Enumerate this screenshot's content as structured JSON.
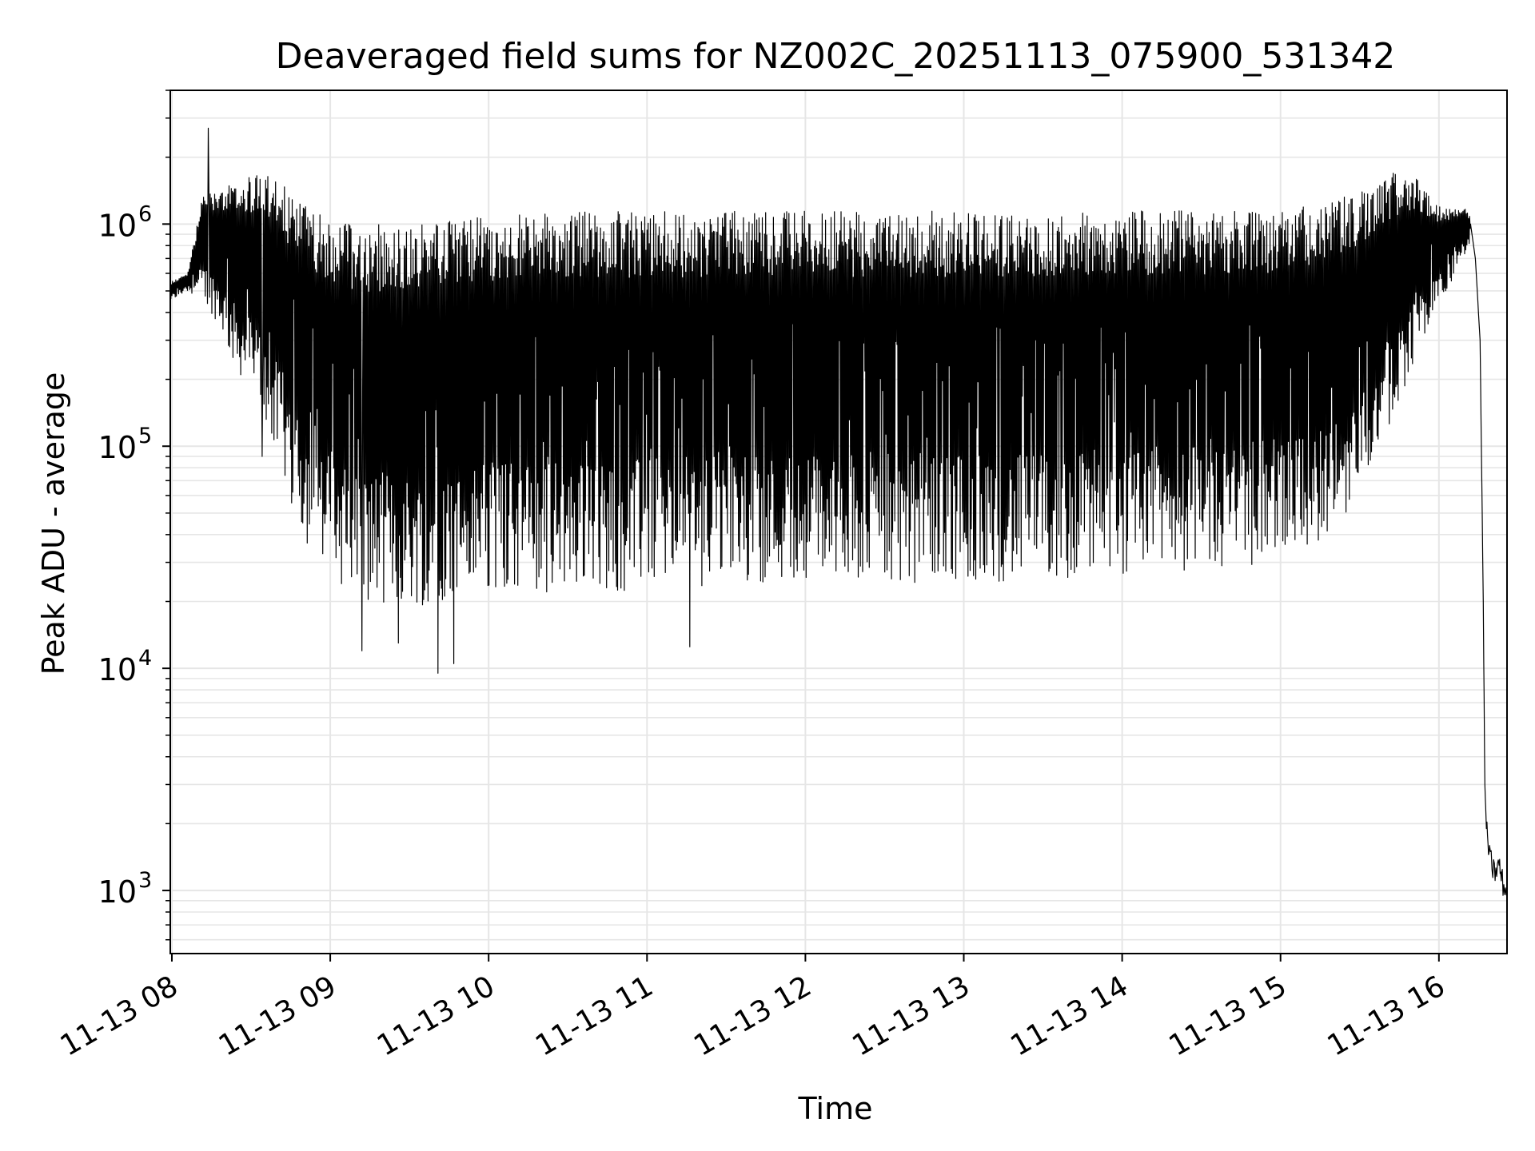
{
  "chart_data": {
    "type": "line",
    "title": "Deaveraged field sums for NZ002C_20251113_075900_531342",
    "xlabel": "Time",
    "ylabel": "Peak ADU - average",
    "yscale": "log",
    "xlim_hours": [
      7.99,
      16.43
    ],
    "ylim": [
      520,
      4000000
    ],
    "grid": true,
    "x_ticks": [
      {
        "h": 8,
        "label": "11-13 08"
      },
      {
        "h": 9,
        "label": "11-13 09"
      },
      {
        "h": 10,
        "label": "11-13 10"
      },
      {
        "h": 11,
        "label": "11-13 11"
      },
      {
        "h": 12,
        "label": "11-13 12"
      },
      {
        "h": 13,
        "label": "11-13 13"
      },
      {
        "h": 14,
        "label": "11-13 14"
      },
      {
        "h": 15,
        "label": "11-13 15"
      },
      {
        "h": 16,
        "label": "11-13 16"
      }
    ],
    "y_ticks": [
      {
        "v": 1000,
        "base": "10",
        "exp": "3"
      },
      {
        "v": 10000,
        "base": "10",
        "exp": "4"
      },
      {
        "v": 100000,
        "base": "10",
        "exp": "5"
      },
      {
        "v": 1000000,
        "base": "10",
        "exp": "6"
      }
    ],
    "series": [
      {
        "name": "Peak ADU - average",
        "color": "#000000",
        "style": "oscillating",
        "description": "rapid oscillation between an upper envelope (peaks) and lower envelope (troughs); values given at time knots in hours",
        "upper_envelope": {
          "h": [
            7.99,
            8.1,
            8.2,
            8.3,
            8.5,
            8.6,
            8.75,
            8.9,
            9.1,
            9.3,
            9.6,
            10.0,
            10.5,
            11.0,
            11.5,
            12.0,
            12.5,
            13.0,
            13.5,
            14.0,
            14.5,
            15.0,
            15.3,
            15.5,
            15.7,
            15.85,
            16.0,
            16.15,
            16.2
          ],
          "v": [
            550000,
            600000,
            1400000,
            1500000,
            1650000,
            1700000,
            1400000,
            1150000,
            1000000,
            1000000,
            1000000,
            1100000,
            1150000,
            1150000,
            1150000,
            1150000,
            1150000,
            1150000,
            1150000,
            1150000,
            1150000,
            1150000,
            1250000,
            1400000,
            1700000,
            1650000,
            1200000,
            1200000,
            1100000
          ]
        },
        "lower_envelope": {
          "h": [
            7.99,
            8.1,
            8.2,
            8.3,
            8.4,
            8.5,
            8.6,
            8.75,
            8.9,
            9.0,
            9.2,
            9.5,
            9.8,
            10.1,
            10.5,
            11.0,
            11.5,
            12.0,
            12.5,
            13.0,
            13.5,
            14.0,
            14.5,
            15.0,
            15.2,
            15.35,
            15.5,
            15.65,
            15.8,
            15.95,
            16.05,
            16.2
          ],
          "v": [
            450000,
            500000,
            450000,
            350000,
            220000,
            180000,
            120000,
            55000,
            30000,
            25000,
            20000,
            19000,
            20000,
            22000,
            22000,
            22000,
            24000,
            25000,
            24000,
            25000,
            24000,
            26000,
            28000,
            30000,
            35000,
            40000,
            60000,
            100000,
            200000,
            350000,
            500000,
            800000
          ]
        },
        "spikes": [
          {
            "h": 8.23,
            "v": 2700000
          },
          {
            "h": 8.57,
            "v": 90000
          },
          {
            "h": 9.2,
            "v": 12000
          },
          {
            "h": 9.43,
            "v": 13000
          },
          {
            "h": 9.68,
            "v": 9500
          },
          {
            "h": 9.78,
            "v": 10500
          },
          {
            "h": 11.27,
            "v": 12500
          }
        ],
        "tail": {
          "h": [
            16.2,
            16.23,
            16.26,
            16.28,
            16.29,
            16.3,
            16.32,
            16.35,
            16.38,
            16.4,
            16.43
          ],
          "v": [
            1000000,
            700000,
            300000,
            20000,
            3000,
            1900,
            1400,
            1200,
            1300,
            1100,
            950
          ]
        }
      }
    ]
  }
}
